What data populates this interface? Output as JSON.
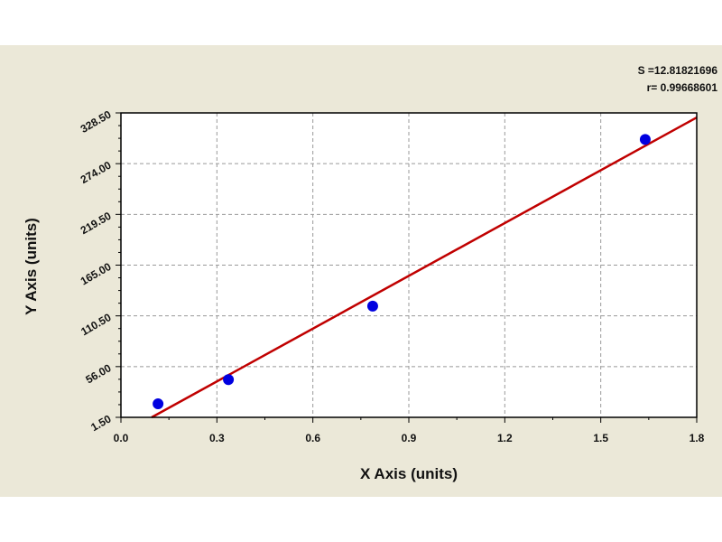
{
  "chart_data": {
    "type": "scatter",
    "xlabel": "X Axis (units)",
    "ylabel": "Y Axis (units)",
    "xlim": [
      0,
      1.8
    ],
    "ylim": [
      1.5,
      328.5
    ],
    "xticks": [
      "0.0",
      "0.3",
      "0.6",
      "0.9",
      "1.2",
      "1.5",
      "1.8"
    ],
    "yticks": [
      "1.50",
      "56.00",
      "110.50",
      "165.00",
      "219.50",
      "274.00",
      "328.50"
    ],
    "grid": true,
    "points": [
      {
        "x": 0.116,
        "y": 16
      },
      {
        "x": 0.336,
        "y": 42
      },
      {
        "x": 0.787,
        "y": 121
      },
      {
        "x": 1.639,
        "y": 300
      }
    ],
    "fit_line": [
      {
        "x": 0.096,
        "y": 1.5
      },
      {
        "x": 1.8,
        "y": 323.6
      }
    ],
    "annotations": [
      "S =12.81821696",
      "r= 0.99668601"
    ],
    "colors": {
      "points": "#0000e0",
      "line": "#c00000",
      "background": "#ebe8d8",
      "plot": "#ffffff"
    }
  }
}
